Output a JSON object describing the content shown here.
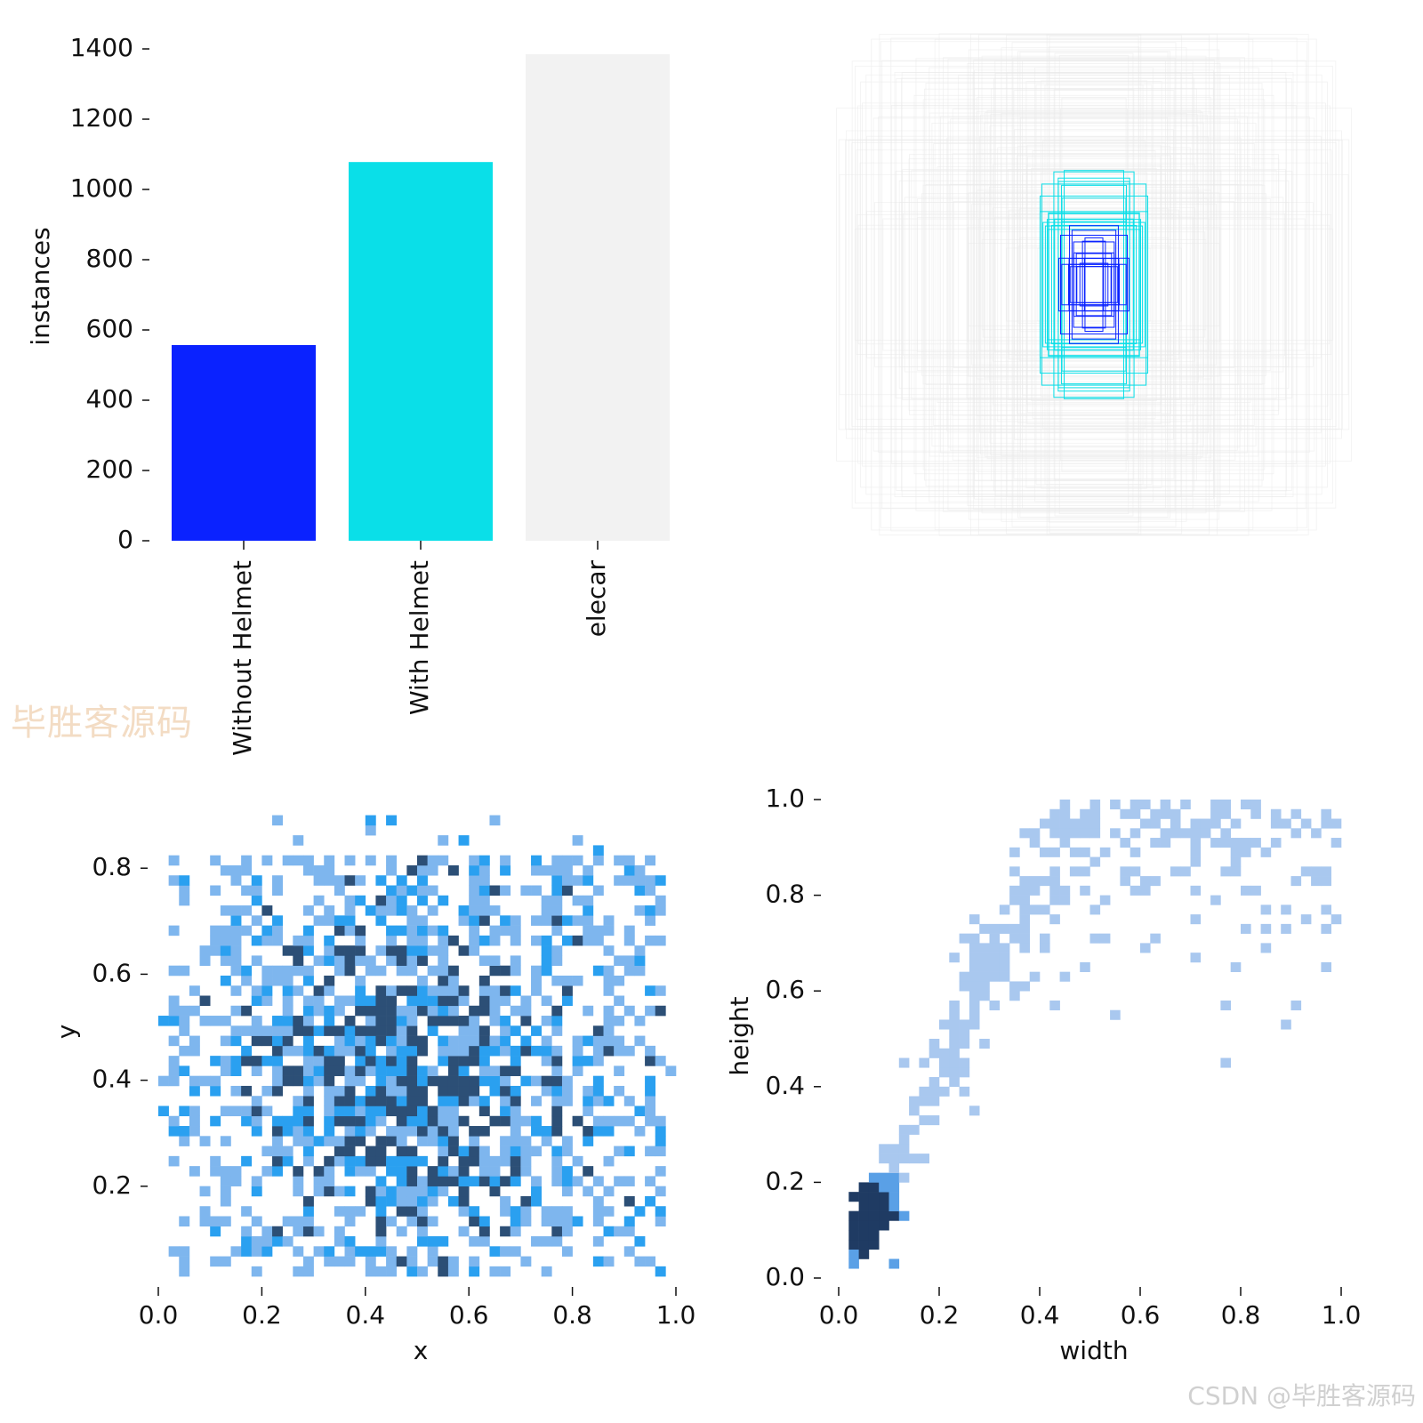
{
  "colors": {
    "without_helmet": "#0a22ff",
    "with_helmet": "#0adfe8",
    "elecar": "#f2f2f2",
    "hist_light": "#7eb6ee",
    "hist_mid": "#2aa0f0",
    "hist_dark": "#2c4f76",
    "wh_light": "#a9c8ef",
    "wh_mid": "#5aa0e6",
    "wh_dark": "#1f3b63"
  },
  "watermarks": {
    "left": "毕胜客源码",
    "bottom_right": "CSDN @毕胜客源码"
  },
  "chart_data": [
    {
      "id": "class-counts",
      "type": "bar",
      "categories": [
        "Without Helmet",
        "With Helmet",
        "elecar"
      ],
      "values": [
        557,
        1078,
        1385
      ],
      "ylabel": "instances",
      "xlabel": "",
      "ylim": [
        0,
        1400
      ],
      "yticks": [
        0,
        200,
        400,
        600,
        800,
        1000,
        1200,
        1400
      ],
      "ytick_labels": [
        "0",
        "200",
        "400",
        "600",
        "800",
        "1000",
        "1200",
        "1400"
      ],
      "grid": false
    },
    {
      "id": "box-overlay",
      "type": "other",
      "description_visible": false
    },
    {
      "id": "xy-distribution",
      "type": "heatmap",
      "xlabel": "x",
      "ylabel": "y",
      "xlim": [
        0,
        1
      ],
      "ylim": [
        0.03,
        0.9
      ],
      "xticks": [
        0.0,
        0.2,
        0.4,
        0.6,
        0.8,
        1.0
      ],
      "xtick_labels": [
        "0.0",
        "0.2",
        "0.4",
        "0.6",
        "0.8",
        "1.0"
      ],
      "yticks": [
        0.2,
        0.4,
        0.6,
        0.8
      ],
      "ytick_labels": [
        "0.2",
        "0.4",
        "0.6",
        "0.8"
      ],
      "bins": 50,
      "density_center": [
        0.47,
        0.42
      ],
      "grid": false
    },
    {
      "id": "wh-distribution",
      "type": "heatmap",
      "xlabel": "width",
      "ylabel": "height",
      "xlim": [
        0,
        1
      ],
      "ylim": [
        0,
        1
      ],
      "xticks": [
        0.0,
        0.2,
        0.4,
        0.6,
        0.8,
        1.0
      ],
      "xtick_labels": [
        "0.0",
        "0.2",
        "0.4",
        "0.6",
        "0.8",
        "1.0"
      ],
      "yticks": [
        0.0,
        0.2,
        0.4,
        0.6,
        0.8,
        1.0
      ],
      "ytick_labels": [
        "0.0",
        "0.2",
        "0.4",
        "0.6",
        "0.8",
        "1.0"
      ],
      "bins": 50,
      "density_peak": [
        0.06,
        0.12
      ],
      "grid": false
    }
  ]
}
